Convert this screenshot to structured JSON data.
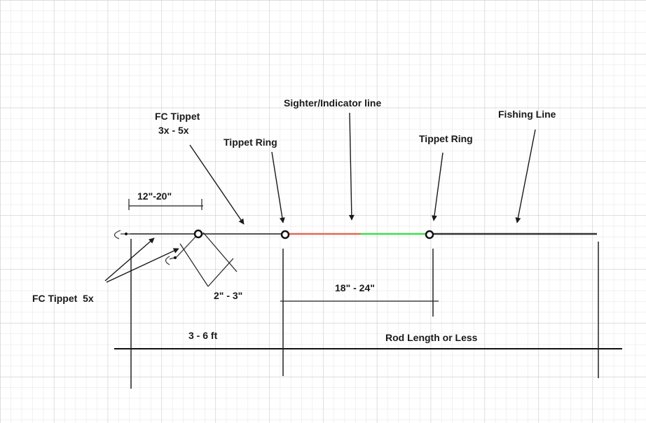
{
  "labels": {
    "fc_tippet_top_line1": "FC Tippet",
    "fc_tippet_top_line2": "3x - 5x",
    "tippet_ring_left": "Tippet Ring",
    "sighter_indicator": "Sighter/Indicator line",
    "tippet_ring_right": "Tippet Ring",
    "fishing_line": "Fishing Line",
    "dropper_length": "12\"-20\"",
    "tag_length": "2\" - 3\"",
    "sighter_length": "18\" - 24\"",
    "fc_tippet_bottom": "FC Tippet  5x",
    "leader_length": "3 - 6 ft",
    "rod_length": "Rod Length or Less"
  },
  "colors": {
    "background": "#ffffff",
    "grid_minor": "#e3e3e3",
    "grid_major": "#c9c9c9",
    "line": "#555555",
    "ink": "#1a1a1a",
    "sighter_red": "#e06a55",
    "sighter_green": "#3fe04a"
  }
}
